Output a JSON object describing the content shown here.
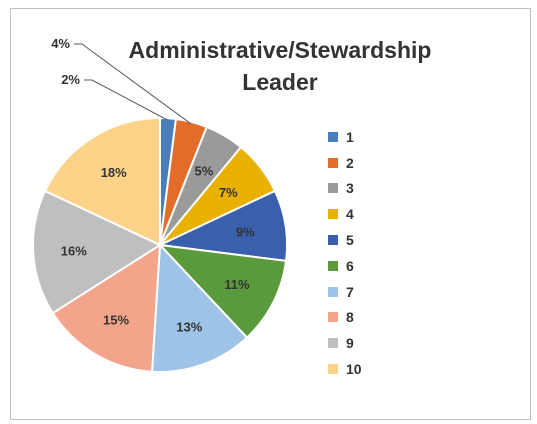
{
  "chart_data": {
    "type": "pie",
    "title": [
      "Administrative/Stewardship",
      "Leader"
    ],
    "categories": [
      "1",
      "2",
      "3",
      "4",
      "5",
      "6",
      "7",
      "8",
      "9",
      "10"
    ],
    "values": [
      2,
      4,
      5,
      7,
      9,
      11,
      13,
      15,
      16,
      18
    ],
    "data_labels": [
      "2%",
      "4%",
      "5%",
      "7%",
      "9%",
      "11%",
      "13%",
      "15%",
      "16%",
      "18%"
    ],
    "colors": [
      "#4a7ebb",
      "#e46c2a",
      "#9a9a9a",
      "#e8b000",
      "#3a5fad",
      "#5a9a3c",
      "#9dc3e6",
      "#f2a58a",
      "#bfbfbf",
      "#fdd389"
    ],
    "legend_position": "right"
  }
}
